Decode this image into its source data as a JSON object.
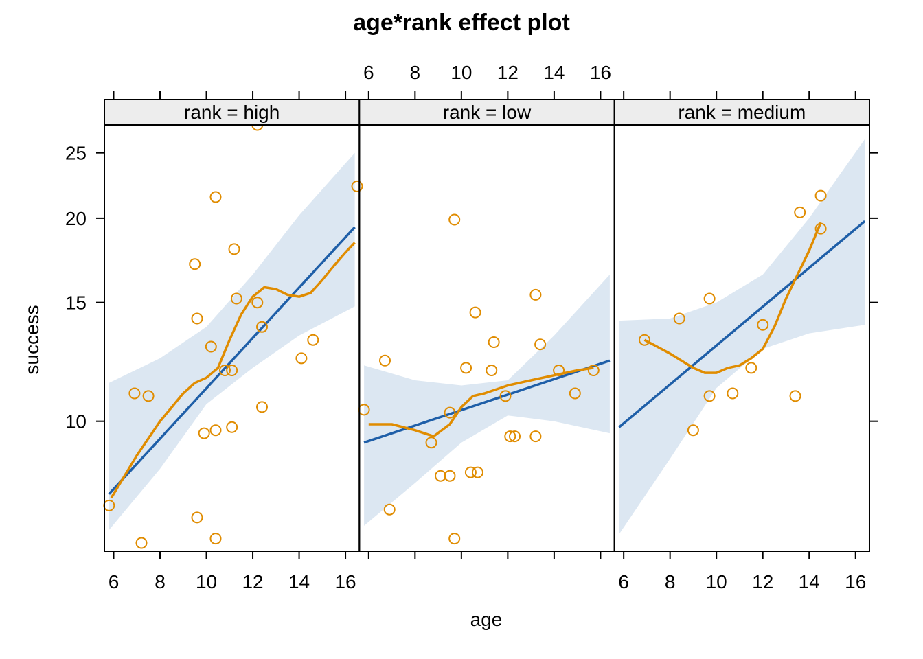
{
  "chart_data": {
    "type": "scatter",
    "title": "age*rank effect plot",
    "xlabel": "age",
    "ylabel": "success",
    "xlim": [
      5.6,
      16.6
    ],
    "y_scale": "log",
    "ylim": [
      6.6,
      27.5
    ],
    "x_ticks": [
      6,
      8,
      10,
      12,
      14,
      16
    ],
    "y_ticks": [
      10,
      15,
      20,
      25
    ],
    "colors": {
      "points": "#E08C00",
      "fit": "#1F5FA8",
      "band": "#DCE7F2",
      "strip": "#EDEDED"
    },
    "panels": [
      {
        "strip": "rank = high",
        "fit": {
          "x": [
            5.8,
            16.4
          ],
          "y": [
            7.8,
            19.4
          ]
        },
        "band": {
          "x": [
            5.8,
            8,
            10,
            12,
            14,
            16.4
          ],
          "lower": [
            6.9,
            8.5,
            10.6,
            12.0,
            13.4,
            14.8
          ],
          "upper": [
            11.4,
            12.4,
            13.8,
            16.5,
            20.2,
            25.0
          ]
        },
        "smooth": {
          "x": [
            5.9,
            7,
            8,
            9,
            9.5,
            10,
            10.5,
            11,
            11.5,
            12,
            12.5,
            13,
            13.5,
            14,
            14.5,
            15,
            15.5,
            16,
            16.4
          ],
          "y": [
            7.7,
            8.9,
            10.0,
            11.0,
            11.4,
            11.6,
            12.0,
            13.2,
            14.4,
            15.3,
            15.8,
            15.7,
            15.4,
            15.3,
            15.5,
            16.2,
            17.0,
            17.8,
            18.4
          ]
        },
        "points": {
          "x": [
            5.8,
            6.9,
            7.2,
            7.5,
            9.5,
            9.6,
            9.6,
            9.9,
            10.2,
            10.4,
            10.4,
            10.4,
            10.8,
            11.1,
            11.1,
            11.2,
            11.3,
            12.2,
            12.2,
            12.4,
            12.4,
            14.1,
            14.6,
            16.5
          ],
          "y": [
            7.5,
            11.0,
            6.6,
            10.9,
            17.1,
            14.2,
            7.2,
            9.6,
            12.9,
            21.5,
            9.7,
            6.7,
            11.9,
            9.8,
            11.9,
            18.0,
            15.2,
            15.0,
            27.5,
            13.8,
            10.5,
            12.4,
            13.2,
            22.3
          ]
        }
      },
      {
        "strip": "rank = low",
        "fit": {
          "x": [
            5.8,
            16.4
          ],
          "y": [
            9.3,
            12.3
          ]
        },
        "band": {
          "x": [
            5.8,
            8,
            10,
            12,
            14,
            16.4
          ],
          "lower": [
            7.0,
            8.1,
            9.3,
            10.2,
            10.0,
            9.6
          ],
          "upper": [
            12.1,
            11.5,
            11.3,
            11.5,
            13.4,
            16.5
          ]
        },
        "smooth": {
          "x": [
            6,
            7,
            8,
            8.8,
            9.5,
            10,
            10.5,
            11,
            12,
            13,
            14,
            15,
            15.7
          ],
          "y": [
            9.9,
            9.9,
            9.7,
            9.5,
            9.9,
            10.5,
            10.9,
            11.0,
            11.3,
            11.5,
            11.7,
            11.9,
            12.0
          ]
        },
        "points": {
          "x": [
            5.8,
            6.7,
            6.9,
            8.7,
            9.1,
            9.5,
            9.5,
            9.7,
            9.7,
            10.2,
            10.4,
            10.6,
            10.7,
            11.3,
            11.4,
            11.9,
            12.1,
            12.3,
            13.2,
            13.2,
            13.4,
            14.2,
            14.9,
            15.7
          ],
          "y": [
            10.4,
            12.3,
            7.4,
            9.3,
            8.3,
            10.3,
            8.3,
            19.9,
            6.7,
            12.0,
            8.4,
            14.5,
            8.4,
            11.9,
            13.1,
            10.9,
            9.5,
            9.5,
            9.5,
            15.4,
            13.0,
            11.9,
            11.0,
            11.9
          ]
        }
      },
      {
        "strip": "rank = medium",
        "fit": {
          "x": [
            5.8,
            16.4
          ],
          "y": [
            9.8,
            19.8
          ]
        },
        "band": {
          "x": [
            5.8,
            8,
            10,
            12,
            14,
            16.4
          ],
          "lower": [
            6.8,
            8.8,
            11.2,
            12.8,
            13.5,
            13.9
          ],
          "upper": [
            14.1,
            14.2,
            15.0,
            16.5,
            20.0,
            26.2
          ]
        },
        "smooth": {
          "x": [
            6.9,
            8,
            9,
            9.5,
            10,
            10.5,
            11,
            11.5,
            12,
            12.5,
            13,
            13.5,
            14,
            14.5
          ],
          "y": [
            13.2,
            12.6,
            12.0,
            11.8,
            11.8,
            12.0,
            12.1,
            12.4,
            12.8,
            13.8,
            15.2,
            16.5,
            17.9,
            19.7
          ]
        },
        "points": {
          "x": [
            6.9,
            8.4,
            9.0,
            9.7,
            9.7,
            10.7,
            11.5,
            12.0,
            13.4,
            13.6,
            14.5,
            14.5
          ],
          "y": [
            13.2,
            14.2,
            9.7,
            10.9,
            15.2,
            11.0,
            12.0,
            13.9,
            10.9,
            20.4,
            19.3,
            21.6
          ]
        }
      }
    ]
  }
}
